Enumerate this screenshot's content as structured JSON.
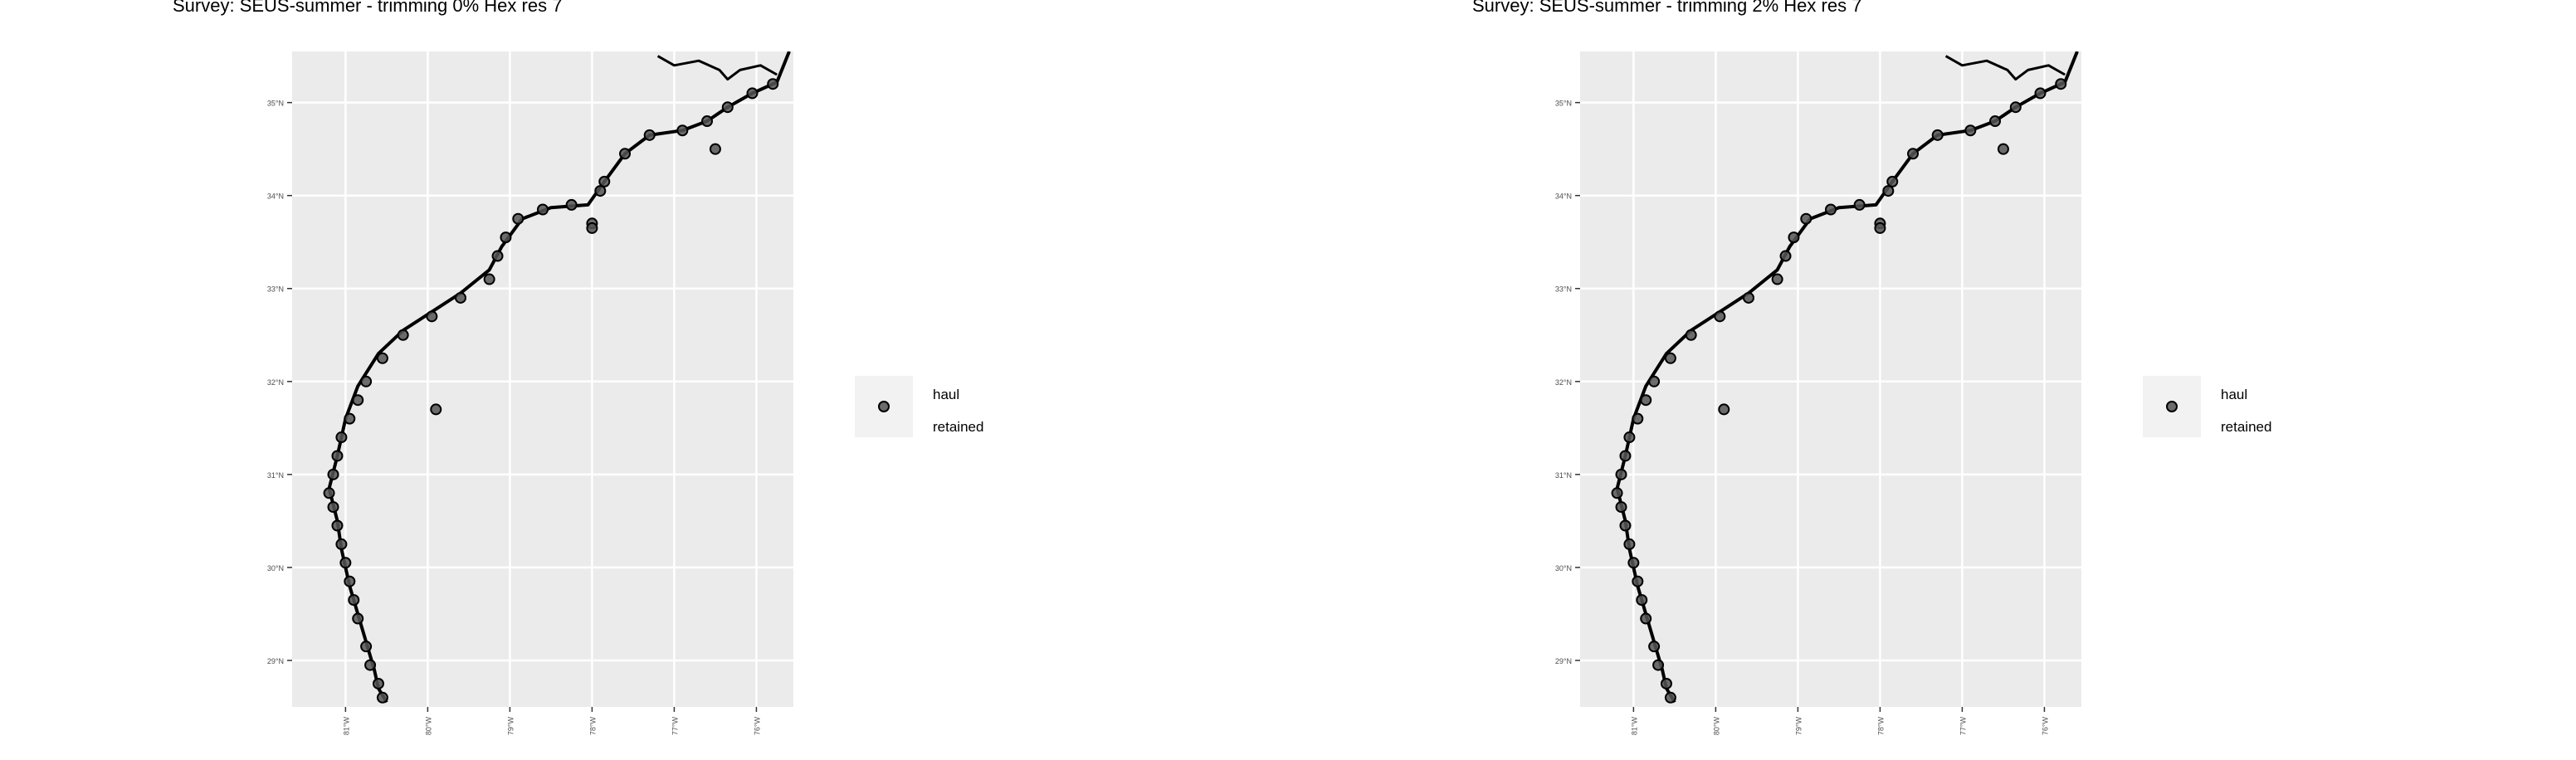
{
  "colors": {
    "panel_background": "#ebebeb",
    "grid_line": "#ffffff",
    "coastline": "#000000",
    "haul_point": "#555555",
    "legend_key_background": "#f2f2f2",
    "axis_text": "#4d4d4d"
  },
  "maps": [
    {
      "title": "Survey: SEUS-summer - trimming 0% Hex res 7",
      "lat_ticks": [
        "35°N",
        "34°N",
        "33°N",
        "32°N",
        "31°N",
        "30°N",
        "29°N"
      ],
      "lon_ticks": [
        "81°W",
        "80°W",
        "79°W",
        "78°W",
        "77°W",
        "76°W"
      ],
      "legend": {
        "label_line1": "haul",
        "label_line2": "retained",
        "key_icon": "dot-icon"
      }
    },
    {
      "title": "Survey: SEUS-summer - trimming 2% Hex res 7",
      "lat_ticks": [
        "35°N",
        "34°N",
        "33°N",
        "32°N",
        "31°N",
        "30°N",
        "29°N"
      ],
      "lon_ticks": [
        "81°W",
        "80°W",
        "79°W",
        "78°W",
        "77°W",
        "76°W"
      ],
      "legend": {
        "label_line1": "haul",
        "label_line2": "retained",
        "key_icon": "dot-icon"
      }
    }
  ],
  "chart_data": {
    "type": "scatter",
    "lat_range": [
      28.5,
      35.55
    ],
    "lon_range": [
      -81.65,
      -75.55
    ],
    "lat_ticks": [
      35,
      34,
      33,
      32,
      31,
      30,
      29
    ],
    "lon_ticks": [
      -81,
      -80,
      -79,
      -78,
      -77,
      -76
    ],
    "grid": true,
    "legend_position": "right",
    "coastline": [
      [
        -80.5,
        28.55
      ],
      [
        -80.6,
        28.7
      ],
      [
        -80.65,
        28.9
      ],
      [
        -80.75,
        29.2
      ],
      [
        -80.85,
        29.5
      ],
      [
        -80.95,
        29.8
      ],
      [
        -81.05,
        30.2
      ],
      [
        -81.1,
        30.5
      ],
      [
        -81.2,
        30.85
      ],
      [
        -81.1,
        31.2
      ],
      [
        -81.0,
        31.6
      ],
      [
        -80.85,
        31.95
      ],
      [
        -80.6,
        32.3
      ],
      [
        -80.3,
        32.55
      ],
      [
        -79.95,
        32.75
      ],
      [
        -79.6,
        32.95
      ],
      [
        -79.25,
        33.2
      ],
      [
        -79.1,
        33.45
      ],
      [
        -78.85,
        33.75
      ],
      [
        -78.5,
        33.87
      ],
      [
        -78.05,
        33.9
      ],
      [
        -77.85,
        34.15
      ],
      [
        -77.6,
        34.45
      ],
      [
        -77.3,
        34.65
      ],
      [
        -76.9,
        34.7
      ],
      [
        -76.6,
        34.8
      ],
      [
        -76.35,
        34.95
      ],
      [
        -76.05,
        35.1
      ],
      [
        -75.75,
        35.22
      ],
      [
        -75.6,
        35.55
      ]
    ],
    "sound_outline": [
      [
        -77.2,
        35.5
      ],
      [
        -77.0,
        35.4
      ],
      [
        -76.7,
        35.45
      ],
      [
        -76.45,
        35.35
      ],
      [
        -76.35,
        35.25
      ],
      [
        -76.2,
        35.35
      ],
      [
        -75.95,
        35.4
      ],
      [
        -75.75,
        35.3
      ]
    ],
    "series": [
      {
        "name": "haul retained",
        "points": [
          [
            -80.55,
            28.6
          ],
          [
            -80.6,
            28.75
          ],
          [
            -80.7,
            28.95
          ],
          [
            -80.75,
            29.15
          ],
          [
            -80.85,
            29.45
          ],
          [
            -80.9,
            29.65
          ],
          [
            -80.95,
            29.85
          ],
          [
            -81.0,
            30.05
          ],
          [
            -81.05,
            30.25
          ],
          [
            -81.1,
            30.45
          ],
          [
            -81.15,
            30.65
          ],
          [
            -81.2,
            30.8
          ],
          [
            -81.15,
            31.0
          ],
          [
            -81.1,
            31.2
          ],
          [
            -81.05,
            31.4
          ],
          [
            -80.95,
            31.6
          ],
          [
            -80.85,
            31.8
          ],
          [
            -80.75,
            32.0
          ],
          [
            -80.55,
            32.25
          ],
          [
            -80.3,
            32.5
          ],
          [
            -79.95,
            32.7
          ],
          [
            -79.6,
            32.9
          ],
          [
            -79.25,
            33.1
          ],
          [
            -79.15,
            33.35
          ],
          [
            -79.05,
            33.55
          ],
          [
            -78.9,
            33.75
          ],
          [
            -78.6,
            33.85
          ],
          [
            -78.25,
            33.9
          ],
          [
            -78.0,
            33.7
          ],
          [
            -77.9,
            34.05
          ],
          [
            -77.85,
            34.15
          ],
          [
            -77.6,
            34.45
          ],
          [
            -77.3,
            34.65
          ],
          [
            -76.9,
            34.7
          ],
          [
            -76.6,
            34.8
          ],
          [
            -76.35,
            34.95
          ],
          [
            -76.05,
            35.1
          ],
          [
            -75.8,
            35.2
          ],
          [
            -79.9,
            31.7
          ],
          [
            -76.5,
            34.5
          ],
          [
            -78.0,
            33.65
          ]
        ]
      }
    ]
  }
}
